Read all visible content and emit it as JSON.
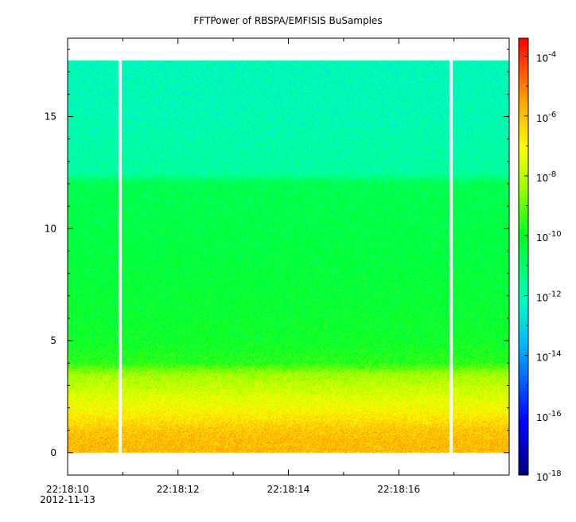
{
  "chart_data": {
    "type": "heatmap",
    "title": "FFTPower of RBSPA/EMFISIS  BuSamples",
    "xlabel": "",
    "ylabel": "",
    "x_ticks": [
      {
        "value": "22:18:10",
        "sub": "2012-11-13"
      },
      {
        "value": "22:18:12",
        "sub": ""
      },
      {
        "value": "22:18:14",
        "sub": ""
      },
      {
        "value": "22:18:16",
        "sub": ""
      }
    ],
    "x_range_seconds_labels": [
      "22:18:10",
      "22:18:18"
    ],
    "y_ticks": [
      "0",
      "5",
      "10",
      "15"
    ],
    "ylim": [
      -1,
      18.5
    ],
    "data_y_range": [
      0,
      17.5
    ],
    "gaps_seconds_after_start": [
      0.95,
      6.95
    ],
    "colorbar": {
      "scale": "log",
      "min_exp": -18,
      "max_exp": -3.4,
      "tick_bases": [
        "10",
        "10",
        "10",
        "10",
        "10",
        "10",
        "10",
        "10"
      ],
      "tick_exponents": [
        "-4",
        "-6",
        "-8",
        "-10",
        "-12",
        "-14",
        "-16",
        "-18"
      ]
    },
    "power_profile": [
      {
        "y": 0.0,
        "log_power": -5.9
      },
      {
        "y": 0.5,
        "log_power": -5.9
      },
      {
        "y": 1.0,
        "log_power": -6.1
      },
      {
        "y": 1.5,
        "log_power": -6.6
      },
      {
        "y": 2.0,
        "log_power": -7.1
      },
      {
        "y": 2.5,
        "log_power": -7.5
      },
      {
        "y": 3.0,
        "log_power": -7.9
      },
      {
        "y": 3.5,
        "log_power": -8.3
      },
      {
        "y": 4.0,
        "log_power": -9.6
      },
      {
        "y": 5.0,
        "log_power": -10.0
      },
      {
        "y": 8.0,
        "log_power": -10.3
      },
      {
        "y": 12.0,
        "log_power": -10.6
      },
      {
        "y": 12.5,
        "log_power": -11.7
      },
      {
        "y": 15.0,
        "log_power": -12.0
      },
      {
        "y": 17.5,
        "log_power": -12.1
      }
    ]
  }
}
